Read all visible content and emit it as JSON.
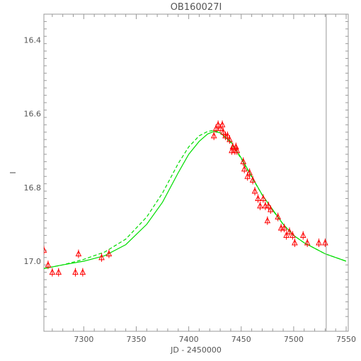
{
  "chart_data": {
    "type": "scatter",
    "title": "OB160027I",
    "xlabel": "JD - 2450000",
    "ylabel": "I",
    "xlim": [
      7262,
      7552
    ],
    "ylim": [
      17.19,
      16.33
    ],
    "y_inverted": true,
    "grid": false,
    "x_ticks": [
      {
        "value": 7300,
        "label": "7300"
      },
      {
        "value": 7350,
        "label": "7350"
      },
      {
        "value": 7400,
        "label": "7400"
      },
      {
        "value": 7450,
        "label": "7450"
      },
      {
        "value": 7500,
        "label": "7500"
      },
      {
        "value": 7550,
        "label": "7550"
      }
    ],
    "y_ticks": [
      {
        "value": 16.4,
        "label": "16.4"
      },
      {
        "value": 16.6,
        "label": "16.6"
      },
      {
        "value": 16.8,
        "label": "16.8"
      },
      {
        "value": 17.0,
        "label": "17.0"
      }
    ],
    "vertical_line": {
      "x": 7531,
      "color": "#999999"
    },
    "observations": {
      "marker": "triangle",
      "color": "#ff0000",
      "points": [
        [
          7262,
          16.97
        ],
        [
          7266,
          17.01
        ],
        [
          7270,
          17.03
        ],
        [
          7276,
          17.03
        ],
        [
          7292,
          17.03
        ],
        [
          7295,
          16.98
        ],
        [
          7299,
          17.03
        ],
        [
          7317,
          16.99
        ],
        [
          7324,
          16.98
        ],
        [
          7424,
          16.66
        ],
        [
          7426,
          16.64
        ],
        [
          7428,
          16.63
        ],
        [
          7430,
          16.64
        ],
        [
          7432,
          16.63
        ],
        [
          7433,
          16.65
        ],
        [
          7435,
          16.66
        ],
        [
          7437,
          16.66
        ],
        [
          7439,
          16.67
        ],
        [
          7441,
          16.7
        ],
        [
          7442,
          16.69
        ],
        [
          7444,
          16.7
        ],
        [
          7445,
          16.69
        ],
        [
          7446,
          16.7
        ],
        [
          7452,
          16.73
        ],
        [
          7453,
          16.75
        ],
        [
          7456,
          16.77
        ],
        [
          7458,
          16.76
        ],
        [
          7461,
          16.78
        ],
        [
          7463,
          16.81
        ],
        [
          7466,
          16.83
        ],
        [
          7468,
          16.85
        ],
        [
          7471,
          16.83
        ],
        [
          7473,
          16.85
        ],
        [
          7475,
          16.89
        ],
        [
          7476,
          16.85
        ],
        [
          7478,
          16.86
        ],
        [
          7485,
          16.88
        ],
        [
          7488,
          16.91
        ],
        [
          7491,
          16.91
        ],
        [
          7493,
          16.93
        ],
        [
          7496,
          16.92
        ],
        [
          7499,
          16.93
        ],
        [
          7501,
          16.95
        ],
        [
          7509,
          16.93
        ],
        [
          7513,
          16.95
        ],
        [
          7524,
          16.95
        ],
        [
          7530,
          16.95
        ]
      ]
    },
    "model_curves": [
      {
        "style": "solid",
        "color": "#00dd00",
        "points": [
          [
            7262,
            17.02
          ],
          [
            7280,
            17.01
          ],
          [
            7300,
            17.0
          ],
          [
            7320,
            16.985
          ],
          [
            7340,
            16.955
          ],
          [
            7360,
            16.9
          ],
          [
            7375,
            16.84
          ],
          [
            7390,
            16.76
          ],
          [
            7400,
            16.71
          ],
          [
            7410,
            16.675
          ],
          [
            7418,
            16.655
          ],
          [
            7424,
            16.648
          ],
          [
            7430,
            16.652
          ],
          [
            7440,
            16.675
          ],
          [
            7450,
            16.72
          ],
          [
            7460,
            16.77
          ],
          [
            7470,
            16.82
          ],
          [
            7480,
            16.86
          ],
          [
            7490,
            16.9
          ],
          [
            7500,
            16.93
          ],
          [
            7510,
            16.95
          ],
          [
            7520,
            16.965
          ],
          [
            7530,
            16.98
          ],
          [
            7540,
            16.99
          ],
          [
            7550,
            17.0
          ]
        ]
      },
      {
        "style": "dashed",
        "color": "#00dd00",
        "points": [
          [
            7262,
            17.02
          ],
          [
            7280,
            17.01
          ],
          [
            7300,
            16.995
          ],
          [
            7320,
            16.975
          ],
          [
            7340,
            16.94
          ],
          [
            7360,
            16.88
          ],
          [
            7375,
            16.815
          ],
          [
            7390,
            16.735
          ],
          [
            7400,
            16.69
          ],
          [
            7410,
            16.66
          ],
          [
            7418,
            16.648
          ],
          [
            7424,
            16.645
          ],
          [
            7430,
            16.652
          ],
          [
            7440,
            16.678
          ],
          [
            7450,
            16.722
          ],
          [
            7460,
            16.772
          ],
          [
            7470,
            16.82
          ],
          [
            7480,
            16.862
          ],
          [
            7490,
            16.9
          ],
          [
            7500,
            16.93
          ],
          [
            7510,
            16.95
          ],
          [
            7520,
            16.965
          ],
          [
            7530,
            16.98
          ],
          [
            7540,
            16.99
          ],
          [
            7550,
            17.0
          ]
        ]
      }
    ]
  }
}
